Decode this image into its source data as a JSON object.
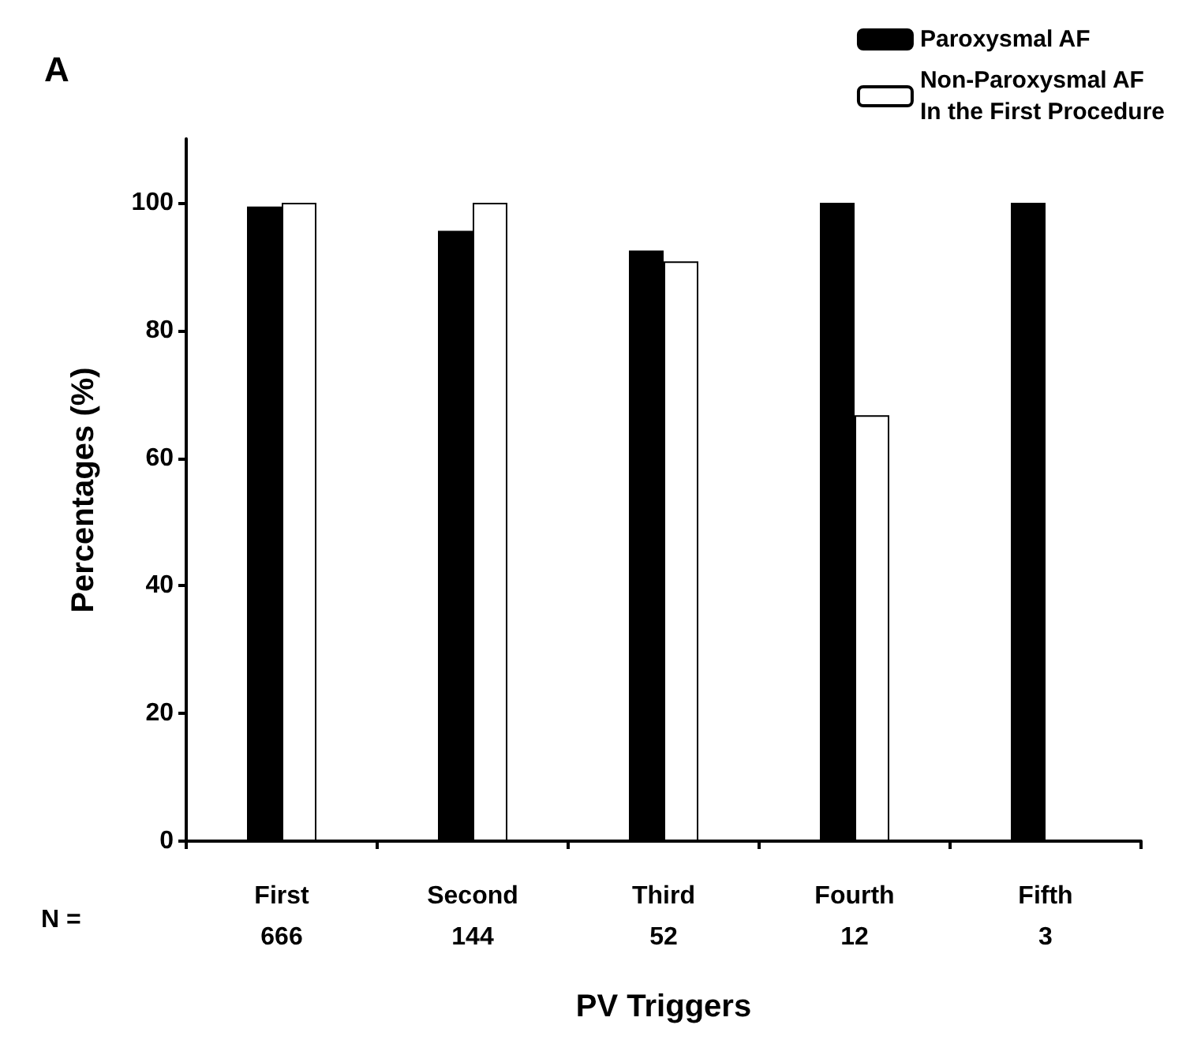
{
  "chart_data": {
    "type": "bar",
    "title": "A",
    "xlabel": "PV Triggers",
    "ylabel": "Percentages (%)",
    "categories": [
      "First\n666",
      "Second\n144",
      "Third\n52",
      "Fourth\n12",
      "Fifth\n3"
    ],
    "series": [
      {
        "name": "Paroxysmal AF",
        "color": "#000000",
        "values": [
          99.4,
          95.6,
          92.5,
          100,
          100
        ]
      },
      {
        "name": "Non-Paroxysmal AF\nIn the First Procedure",
        "color": "#ffffff",
        "values": [
          100,
          100,
          90.8,
          66.7,
          null
        ]
      }
    ],
    "ylim": [
      0,
      110
    ],
    "yticks": [
      0,
      20,
      40,
      60,
      80,
      100
    ],
    "grid": false,
    "legend": "top right",
    "annotations": [
      "N ="
    ]
  }
}
